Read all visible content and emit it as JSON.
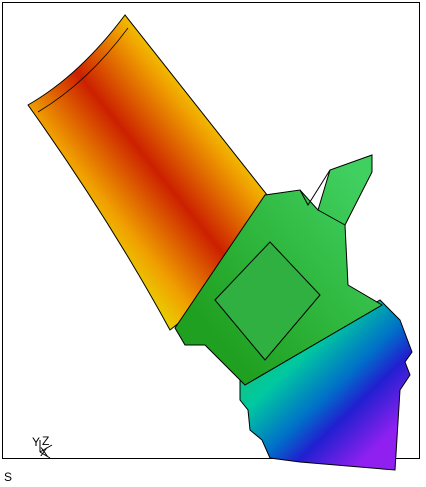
{
  "triad": {
    "y_label": "Y",
    "z_label": "Z",
    "x_label": "X"
  },
  "corner_label": "S"
}
